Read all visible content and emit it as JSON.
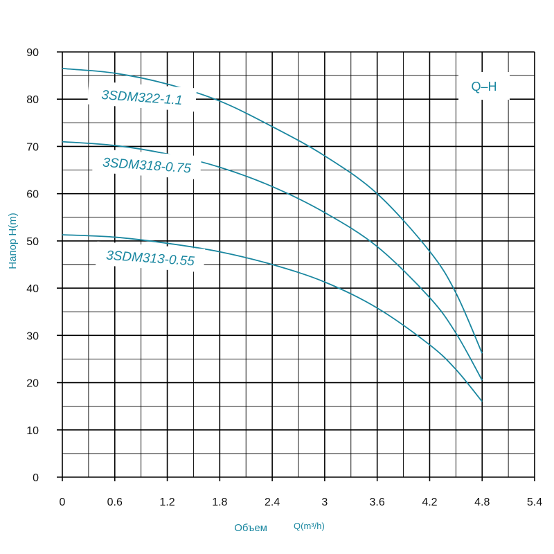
{
  "chart_data": {
    "type": "line",
    "legend_box": "Q–H",
    "xlabel": "Объем",
    "xlabel_unit": "Q(m³/h)",
    "ylabel": "Напор H(m)",
    "xlim": [
      0,
      5.4
    ],
    "ylim": [
      0,
      90
    ],
    "x_ticks": [
      "0",
      "0.6",
      "1.2",
      "1.8",
      "2.4",
      "3",
      "3.6",
      "4.2",
      "4.8",
      "5.4"
    ],
    "y_ticks": [
      "0",
      "10",
      "20",
      "30",
      "40",
      "50",
      "60",
      "70",
      "80",
      "90"
    ],
    "grid": true,
    "colors": {
      "curve": "#1a87a0",
      "grid": "#000000",
      "axis_title": "#1a87a0"
    },
    "series": [
      {
        "name": "3SDM322-1.1",
        "x": [
          0,
          0.6,
          1.2,
          1.8,
          2.4,
          3.0,
          3.6,
          4.2,
          4.5,
          4.8
        ],
        "y": [
          86.5,
          85.5,
          83.2,
          79.6,
          74.2,
          68.0,
          60.0,
          47.8,
          39.0,
          26.2
        ]
      },
      {
        "name": "3SDM318-0.75",
        "x": [
          0,
          0.6,
          1.2,
          1.8,
          2.4,
          3.0,
          3.6,
          4.2,
          4.5,
          4.8
        ],
        "y": [
          71.0,
          70.2,
          68.4,
          65.6,
          61.5,
          56.0,
          48.8,
          38.0,
          30.5,
          20.5
        ]
      },
      {
        "name": "3SDM313-0.55",
        "x": [
          0,
          0.6,
          1.2,
          1.8,
          2.4,
          3.0,
          3.6,
          4.2,
          4.5,
          4.8
        ],
        "y": [
          51.3,
          50.8,
          49.5,
          47.7,
          45.0,
          41.3,
          35.8,
          28.0,
          22.8,
          16.0
        ]
      }
    ]
  }
}
